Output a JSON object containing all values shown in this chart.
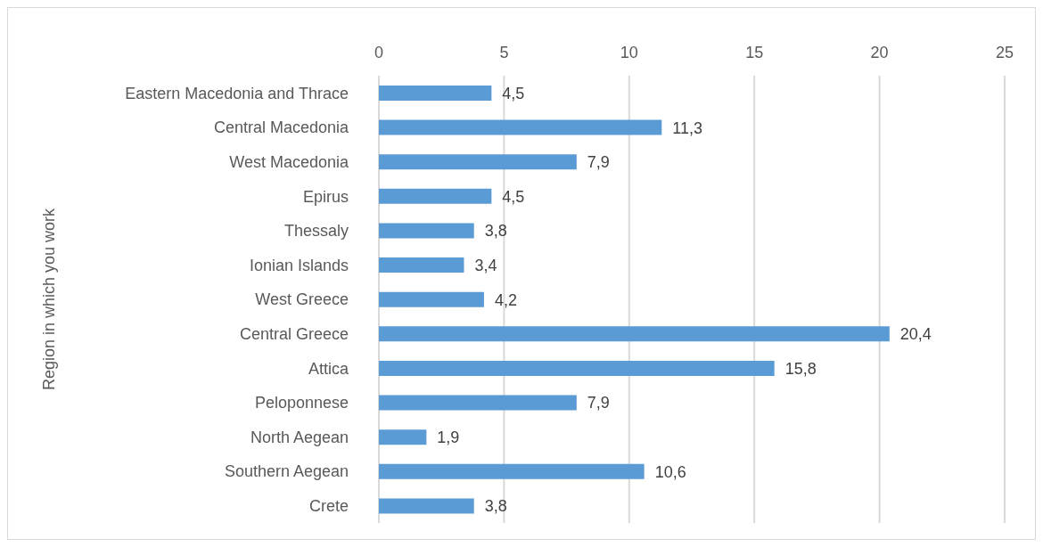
{
  "chart_data": {
    "type": "bar",
    "orientation": "horizontal",
    "ylabel": "Region in which you work",
    "categories": [
      "Eastern Macedonia and Thrace",
      "Central Macedonia",
      "West Macedonia",
      "Epirus",
      "Thessaly",
      "Ionian Islands",
      "West Greece",
      "Central Greece",
      "Attica",
      "Peloponnese",
      "North Aegean",
      "Southern Aegean",
      "Crete"
    ],
    "values": [
      4.5,
      11.3,
      7.9,
      4.5,
      3.8,
      3.4,
      4.2,
      20.4,
      15.8,
      7.9,
      1.9,
      10.6,
      3.8
    ],
    "value_labels": [
      "4,5",
      "11,3",
      "7,9",
      "4,5",
      "3,8",
      "3,4",
      "4,2",
      "20,4",
      "15,8",
      "7,9",
      "1,9",
      "10,6",
      "3,8"
    ],
    "color": "#5b9bd5",
    "xlim": [
      0,
      25
    ],
    "xticks": [
      0,
      5,
      10,
      15,
      20,
      25
    ],
    "grid": "x"
  }
}
